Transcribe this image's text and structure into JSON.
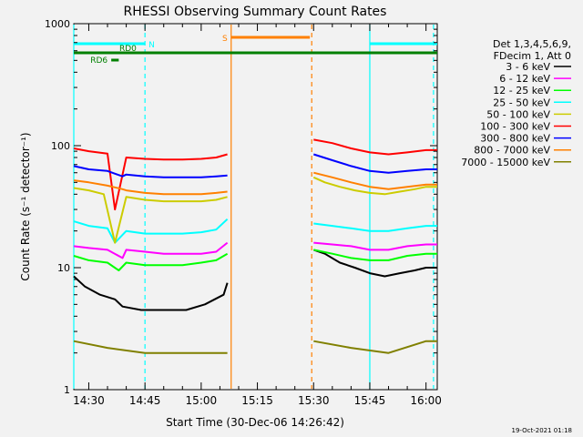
{
  "chart_data": {
    "type": "line",
    "title": "RHESSI Observing Summary Count Rates",
    "xlabel": "Start Time (30-Dec-06 14:26:42)",
    "ylabel": "Count Rate (s⁻¹ detector⁻¹)",
    "yscale": "log",
    "ylim": [
      1,
      1000
    ],
    "xlim_min": [
      866,
      963
    ],
    "x_tick_labels": [
      "14:30",
      "14:45",
      "15:00",
      "15:15",
      "15:30",
      "15:45",
      "16:00"
    ],
    "x_tick_values_min": [
      870,
      885,
      900,
      915,
      930,
      945,
      960
    ],
    "y_tick_labels": [
      "1",
      "10",
      "100",
      "1000"
    ],
    "y_tick_values": [
      1,
      10,
      100,
      1000
    ],
    "legend_header": [
      "Det 1,3,4,5,6,9,",
      "FDecim 1, Att 0"
    ],
    "legend_placement": "right",
    "timestamp": "19-Oct-2021 01:18",
    "gaps_min": [
      [
        908,
        930
      ]
    ],
    "series": [
      {
        "name": "3 - 6 keV",
        "color": "#000000",
        "points": [
          [
            866,
            8.5
          ],
          [
            869,
            7
          ],
          [
            873,
            6
          ],
          [
            877,
            5.5
          ],
          [
            879,
            4.8
          ],
          [
            884,
            4.5
          ],
          [
            890,
            4.5
          ],
          [
            896,
            4.5
          ],
          [
            901,
            5
          ],
          [
            906,
            6
          ],
          [
            907,
            7.5
          ],
          [
            930,
            14
          ],
          [
            933,
            13
          ],
          [
            937,
            11
          ],
          [
            941,
            10
          ],
          [
            945,
            9
          ],
          [
            949,
            8.5
          ],
          [
            953,
            9
          ],
          [
            957,
            9.5
          ],
          [
            960,
            10
          ],
          [
            963,
            10
          ]
        ]
      },
      {
        "name": "6 - 12 keV",
        "color": "#ff00ff",
        "points": [
          [
            866,
            15
          ],
          [
            870,
            14.5
          ],
          [
            875,
            14
          ],
          [
            879,
            12
          ],
          [
            880,
            14
          ],
          [
            885,
            13.5
          ],
          [
            890,
            13
          ],
          [
            895,
            13
          ],
          [
            900,
            13
          ],
          [
            904,
            13.5
          ],
          [
            907,
            16
          ],
          [
            930,
            16
          ],
          [
            935,
            15.5
          ],
          [
            940,
            15
          ],
          [
            945,
            14
          ],
          [
            950,
            14
          ],
          [
            955,
            15
          ],
          [
            960,
            15.5
          ],
          [
            963,
            15.5
          ]
        ]
      },
      {
        "name": "12 - 25 keV",
        "color": "#00ff00",
        "points": [
          [
            866,
            12.5
          ],
          [
            870,
            11.5
          ],
          [
            875,
            11
          ],
          [
            878,
            9.5
          ],
          [
            880,
            11
          ],
          [
            885,
            10.5
          ],
          [
            890,
            10.5
          ],
          [
            895,
            10.5
          ],
          [
            900,
            11
          ],
          [
            904,
            11.5
          ],
          [
            907,
            13
          ],
          [
            930,
            14
          ],
          [
            935,
            13
          ],
          [
            940,
            12
          ],
          [
            945,
            11.5
          ],
          [
            950,
            11.5
          ],
          [
            955,
            12.5
          ],
          [
            960,
            13
          ],
          [
            963,
            13
          ]
        ]
      },
      {
        "name": "25 - 50 keV",
        "color": "#00ffff",
        "points": [
          [
            866,
            24
          ],
          [
            870,
            22
          ],
          [
            875,
            21
          ],
          [
            877,
            16
          ],
          [
            880,
            20
          ],
          [
            885,
            19
          ],
          [
            890,
            19
          ],
          [
            895,
            19
          ],
          [
            900,
            19.5
          ],
          [
            904,
            20.5
          ],
          [
            907,
            25
          ],
          [
            930,
            23
          ],
          [
            935,
            22
          ],
          [
            940,
            21
          ],
          [
            945,
            20
          ],
          [
            950,
            20
          ],
          [
            955,
            21
          ],
          [
            960,
            22
          ],
          [
            963,
            22
          ]
        ]
      },
      {
        "name": "50 - 100 keV",
        "color": "#cccc00",
        "points": [
          [
            866,
            45
          ],
          [
            870,
            43
          ],
          [
            874,
            40
          ],
          [
            877,
            16
          ],
          [
            880,
            38
          ],
          [
            885,
            36
          ],
          [
            890,
            35
          ],
          [
            895,
            35
          ],
          [
            900,
            35
          ],
          [
            904,
            36
          ],
          [
            907,
            38
          ],
          [
            930,
            55
          ],
          [
            933,
            50
          ],
          [
            937,
            46
          ],
          [
            941,
            43
          ],
          [
            945,
            41
          ],
          [
            949,
            40
          ],
          [
            953,
            42
          ],
          [
            957,
            44
          ],
          [
            960,
            46
          ],
          [
            963,
            46
          ]
        ]
      },
      {
        "name": "100 - 300 keV",
        "color": "#ff0000",
        "points": [
          [
            866,
            95
          ],
          [
            870,
            90
          ],
          [
            875,
            86
          ],
          [
            877,
            30
          ],
          [
            880,
            80
          ],
          [
            885,
            78
          ],
          [
            890,
            77
          ],
          [
            895,
            77
          ],
          [
            900,
            78
          ],
          [
            904,
            80
          ],
          [
            907,
            85
          ],
          [
            930,
            112
          ],
          [
            935,
            105
          ],
          [
            940,
            95
          ],
          [
            945,
            88
          ],
          [
            950,
            85
          ],
          [
            955,
            88
          ],
          [
            960,
            92
          ],
          [
            963,
            92
          ]
        ]
      },
      {
        "name": "300 - 800 keV",
        "color": "#0000ff",
        "points": [
          [
            866,
            68
          ],
          [
            870,
            64
          ],
          [
            875,
            62
          ],
          [
            879,
            56
          ],
          [
            880,
            58
          ],
          [
            885,
            56
          ],
          [
            890,
            55
          ],
          [
            895,
            55
          ],
          [
            900,
            55
          ],
          [
            904,
            56
          ],
          [
            907,
            57
          ],
          [
            930,
            85
          ],
          [
            935,
            76
          ],
          [
            940,
            68
          ],
          [
            945,
            62
          ],
          [
            950,
            60
          ],
          [
            955,
            62
          ],
          [
            960,
            64
          ],
          [
            963,
            64
          ]
        ]
      },
      {
        "name": "800 - 7000 keV",
        "color": "#ff8000",
        "points": [
          [
            866,
            52
          ],
          [
            870,
            50
          ],
          [
            875,
            47
          ],
          [
            879,
            44
          ],
          [
            880,
            43
          ],
          [
            885,
            41
          ],
          [
            890,
            40
          ],
          [
            895,
            40
          ],
          [
            900,
            40
          ],
          [
            904,
            41
          ],
          [
            907,
            42
          ],
          [
            930,
            60
          ],
          [
            935,
            55
          ],
          [
            940,
            50
          ],
          [
            945,
            46
          ],
          [
            950,
            44
          ],
          [
            955,
            46
          ],
          [
            960,
            48
          ],
          [
            963,
            48
          ]
        ]
      },
      {
        "name": "7000 - 15000 keV",
        "color": "#808000",
        "points": [
          [
            866,
            2.5
          ],
          [
            875,
            2.2
          ],
          [
            885,
            2
          ],
          [
            895,
            2
          ],
          [
            907,
            2
          ],
          [
            930,
            2.5
          ],
          [
            940,
            2.2
          ],
          [
            950,
            2
          ],
          [
            960,
            2.5
          ],
          [
            963,
            2.5
          ]
        ]
      }
    ],
    "flags": [
      {
        "label": "N",
        "color": "#00ffff",
        "ranges": [
          [
            866,
            885
          ],
          [
            945,
            963
          ]
        ]
      },
      {
        "label": "S",
        "color": "#ff8000",
        "ranges": [
          [
            908,
            929
          ]
        ]
      },
      {
        "label": "RD0",
        "color": "#008000",
        "ranges": [
          [
            866,
            963
          ]
        ]
      },
      {
        "label": "RD6",
        "color": "#008000",
        "ranges": [
          [
            876,
            878
          ]
        ]
      }
    ],
    "vlines": [
      {
        "t": 866,
        "color": "#00ffff",
        "style": "solid"
      },
      {
        "t": 885,
        "color": "#00ffff",
        "style": "dashed"
      },
      {
        "t": 908,
        "color": "#ff8000",
        "style": "solid"
      },
      {
        "t": 929.5,
        "color": "#ff8000",
        "style": "dashed"
      },
      {
        "t": 945,
        "color": "#00ffff",
        "style": "solid"
      },
      {
        "t": 962,
        "color": "#00ffff",
        "style": "dashed"
      }
    ]
  }
}
